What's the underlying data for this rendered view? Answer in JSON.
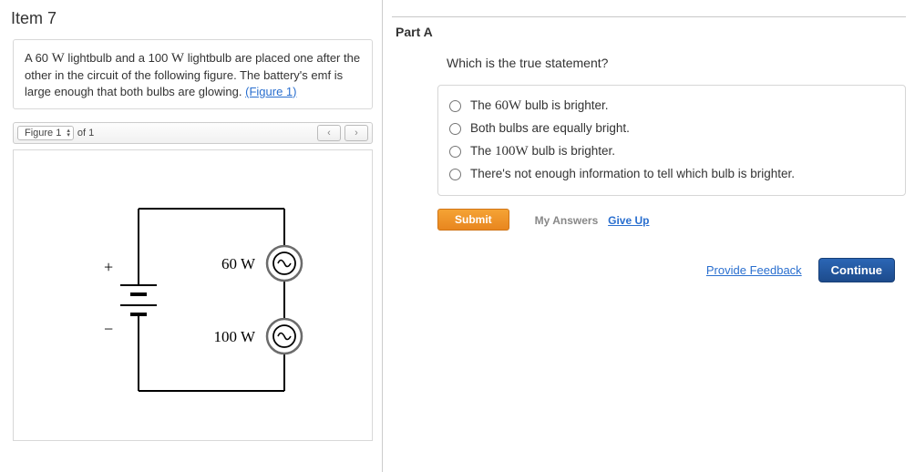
{
  "item": {
    "title": "Item 7"
  },
  "prompt": {
    "text_a": "A 60 ",
    "w1": "W",
    "text_b": " lightbulb and a 100 ",
    "w2": "W",
    "text_c": " lightbulb are placed one after the other in the circuit of the following figure. The battery's emf is large enough that both bulbs are glowing. ",
    "figure_link": "(Figure 1)"
  },
  "figure_bar": {
    "selected": "Figure 1",
    "of_text": "of 1",
    "prev": "‹",
    "next": "›"
  },
  "circuit": {
    "bulb1_label": "60 W",
    "bulb2_label": "100 W",
    "plus": "+",
    "minus": "−",
    "stroke": "#000000",
    "stroke_width": 2,
    "bulb_outer_fill": "#ffffff",
    "bulb_outer_stroke": "#6b6b6b",
    "bulb_inner_stroke": "#000000",
    "label_fontsize": 17,
    "label_font": "Times New Roman, serif"
  },
  "partA": {
    "title": "Part A",
    "question": "Which is the true statement?",
    "options": [
      {
        "pre": "The ",
        "mid": "60W",
        "post": " bulb is brighter."
      },
      {
        "pre": "Both bulbs are equally bright.",
        "mid": "",
        "post": ""
      },
      {
        "pre": "The ",
        "mid": "100W",
        "post": " bulb is brighter."
      },
      {
        "pre": "There's not enough information to tell which bulb is brighter.",
        "mid": "",
        "post": ""
      }
    ]
  },
  "buttons": {
    "submit": "Submit",
    "my_answers": "My Answers",
    "give_up": "Give Up",
    "feedback": "Provide Feedback",
    "continue": "Continue"
  },
  "colors": {
    "link": "#2a6fcf",
    "submit_bg": "#ee8f26",
    "continue_bg": "#235ba3"
  }
}
